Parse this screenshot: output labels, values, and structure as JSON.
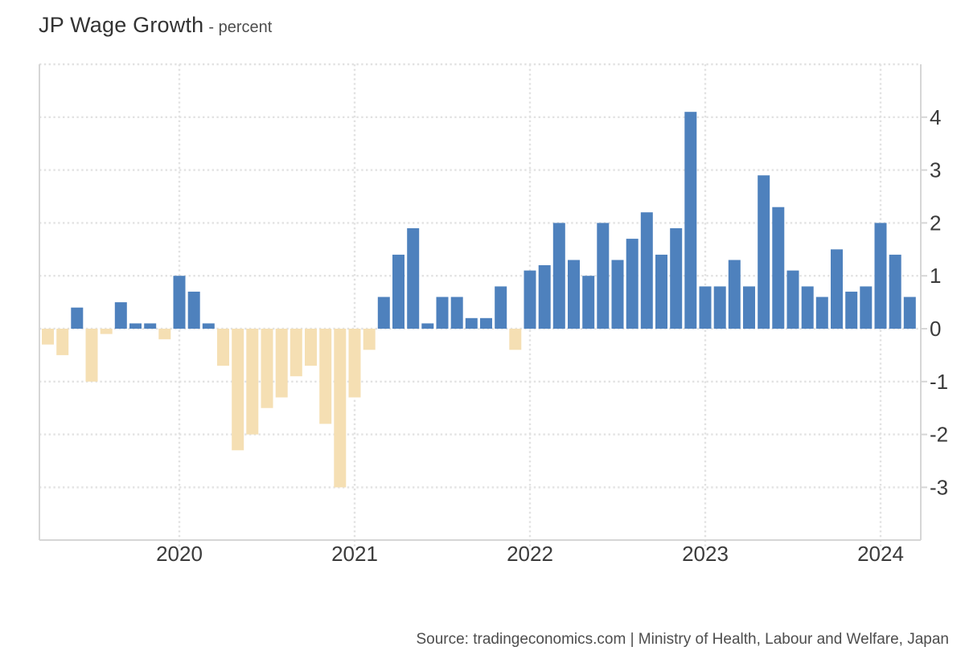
{
  "header": {
    "title": "JP Wage Growth",
    "subtitle": "- percent"
  },
  "footer": {
    "source": "Source: tradingeconomics.com | Ministry of Health, Labour and Welfare, Japan"
  },
  "chart_data": {
    "type": "bar",
    "title": "JP Wage Growth",
    "subtitle": "- percent",
    "ylabel": "percent",
    "ylim": [
      -4,
      5
    ],
    "grid": true,
    "y_ticks": [
      4,
      3,
      2,
      1,
      0,
      -1,
      -2,
      -3
    ],
    "x_tick_labels": [
      "2020",
      "2021",
      "2022",
      "2023",
      "2024"
    ],
    "positive_color": "#4e81bd",
    "negative_color": "#f5dfb3",
    "categories": [
      "2019-04",
      "2019-05",
      "2019-06",
      "2019-07",
      "2019-08",
      "2019-09",
      "2019-10",
      "2019-11",
      "2019-12",
      "2020-01",
      "2020-02",
      "2020-03",
      "2020-04",
      "2020-05",
      "2020-06",
      "2020-07",
      "2020-08",
      "2020-09",
      "2020-10",
      "2020-11",
      "2020-12",
      "2021-01",
      "2021-02",
      "2021-03",
      "2021-04",
      "2021-05",
      "2021-06",
      "2021-07",
      "2021-08",
      "2021-09",
      "2021-10",
      "2021-11",
      "2021-12",
      "2022-01",
      "2022-02",
      "2022-03",
      "2022-04",
      "2022-05",
      "2022-06",
      "2022-07",
      "2022-08",
      "2022-09",
      "2022-10",
      "2022-11",
      "2022-12",
      "2023-01",
      "2023-02",
      "2023-03",
      "2023-04",
      "2023-05",
      "2023-06",
      "2023-07",
      "2023-08",
      "2023-09",
      "2023-10",
      "2023-11",
      "2023-12",
      "2024-01",
      "2024-02",
      "2024-03"
    ],
    "values": [
      -0.3,
      -0.5,
      0.4,
      -1.0,
      -0.1,
      0.5,
      0.1,
      0.1,
      -0.2,
      1.0,
      0.7,
      0.1,
      -0.7,
      -2.3,
      -2.0,
      -1.5,
      -1.3,
      -0.9,
      -0.7,
      -1.8,
      -3.0,
      -1.3,
      -0.4,
      0.6,
      1.4,
      1.9,
      0.1,
      0.6,
      0.6,
      0.2,
      0.2,
      0.8,
      -0.4,
      1.1,
      1.2,
      2.0,
      1.3,
      1.0,
      2.0,
      1.3,
      1.7,
      2.2,
      1.4,
      1.9,
      4.1,
      0.8,
      0.8,
      1.3,
      0.8,
      2.9,
      2.3,
      1.1,
      0.8,
      0.6,
      1.5,
      0.7,
      0.8,
      2.0,
      1.4,
      0.6
    ]
  }
}
